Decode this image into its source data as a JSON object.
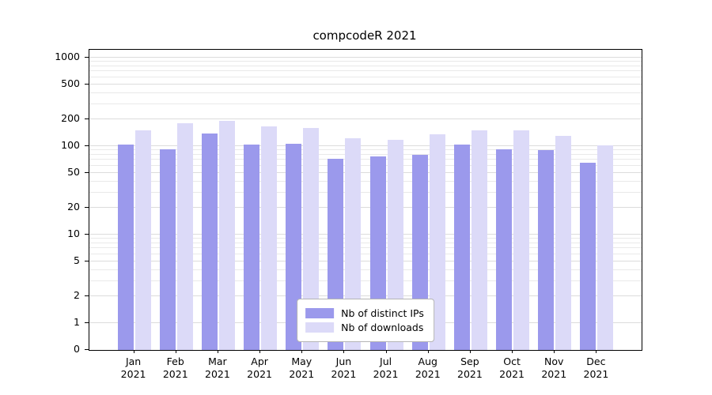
{
  "chart_data": {
    "type": "bar",
    "title": "compcodeR 2021",
    "categories": [
      "Jan",
      "Feb",
      "Mar",
      "Apr",
      "May",
      "Jun",
      "Jul",
      "Aug",
      "Sep",
      "Oct",
      "Nov",
      "Dec"
    ],
    "year_label": "2021",
    "series": [
      {
        "name": "Nb of distinct IPs",
        "color": "#9b99ec",
        "values": [
          105,
          93,
          140,
          104,
          106,
          72,
          77,
          80,
          104,
          93,
          90,
          65
        ]
      },
      {
        "name": "Nb of downloads",
        "color": "#dcdaf8",
        "values": [
          150,
          180,
          193,
          168,
          160,
          123,
          118,
          135,
          152,
          150,
          130,
          102
        ]
      }
    ],
    "y_axis": {
      "scale": "log",
      "ticks": [
        0,
        1,
        2,
        5,
        10,
        20,
        50,
        100,
        200,
        500,
        1000
      ],
      "ylim": [
        0,
        1000
      ],
      "minor_gridlines": true
    },
    "grid": "horizontal",
    "legend": {
      "position": "bottom-center-inside"
    }
  }
}
